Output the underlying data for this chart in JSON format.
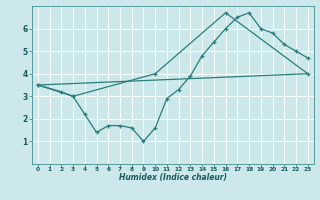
{
  "xlabel": "Humidex (Indice chaleur)",
  "background_color": "#cce8ea",
  "grid_color": "#ffffff",
  "line_color": "#2a7d7d",
  "xlim": [
    -0.5,
    23.5
  ],
  "ylim": [
    0,
    7
  ],
  "xticks": [
    0,
    1,
    2,
    3,
    4,
    5,
    6,
    7,
    8,
    9,
    10,
    11,
    12,
    13,
    14,
    15,
    16,
    17,
    18,
    19,
    20,
    21,
    22,
    23
  ],
  "yticks": [
    1,
    2,
    3,
    4,
    5,
    6
  ],
  "line1_x": [
    0,
    2,
    3,
    4,
    5,
    6,
    7,
    8,
    9,
    10,
    11,
    12,
    13,
    14,
    15,
    16,
    17,
    18,
    19,
    20,
    21,
    22,
    23
  ],
  "line1_y": [
    3.5,
    3.2,
    3.0,
    2.2,
    1.4,
    1.7,
    1.7,
    1.6,
    1.0,
    1.6,
    2.9,
    3.3,
    3.9,
    4.8,
    5.4,
    6.0,
    6.5,
    6.7,
    6.0,
    5.8,
    5.3,
    5.0,
    4.7
  ],
  "line2_x": [
    0,
    3,
    10,
    16,
    23
  ],
  "line2_y": [
    3.5,
    3.0,
    4.0,
    6.7,
    4.0
  ],
  "line3_x": [
    0,
    23
  ],
  "line3_y": [
    3.5,
    4.0
  ]
}
